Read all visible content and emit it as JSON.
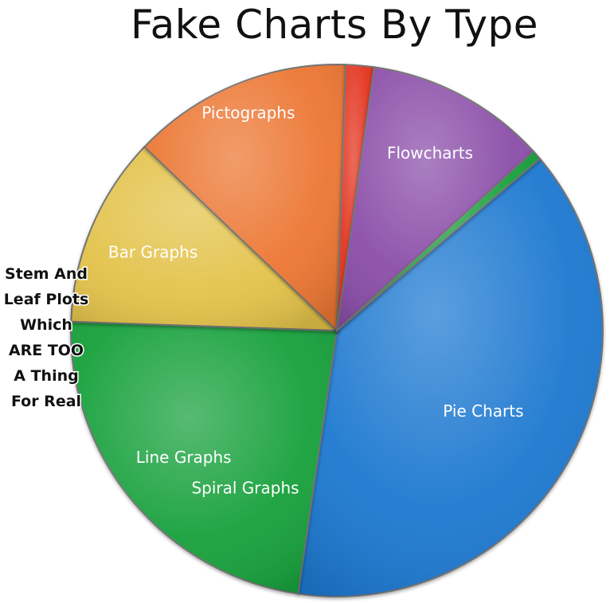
{
  "chart_data": {
    "type": "pie",
    "title": "Fake Charts By Type",
    "slices": [
      {
        "label": "Pie Charts",
        "value": 38.5,
        "color": "#1b78d0"
      },
      {
        "label": "Line Graphs",
        "value": 23.2,
        "color": "#15a03a"
      },
      {
        "label": "Bar Graphs",
        "value": 11.6,
        "color": "#e3c24a"
      },
      {
        "label": "Pictographs",
        "value": 13.4,
        "color": "#ec7631"
      },
      {
        "label": "Spiral Graphs",
        "value": 1.7,
        "color": "#e3331f"
      },
      {
        "label": "Flowcharts",
        "value": 11.0,
        "color": "#8a4ea8"
      },
      {
        "label": "Stem And Leaf Plots Which ARE TOO A Thing For Real",
        "value": 0.6,
        "color": "#15a03a"
      }
    ],
    "outside_label_lines": [
      "Stem And",
      "Leaf Plots",
      "Which",
      "ARE TOO",
      "A Thing",
      "For Real"
    ],
    "grid": false,
    "legend": "none"
  }
}
